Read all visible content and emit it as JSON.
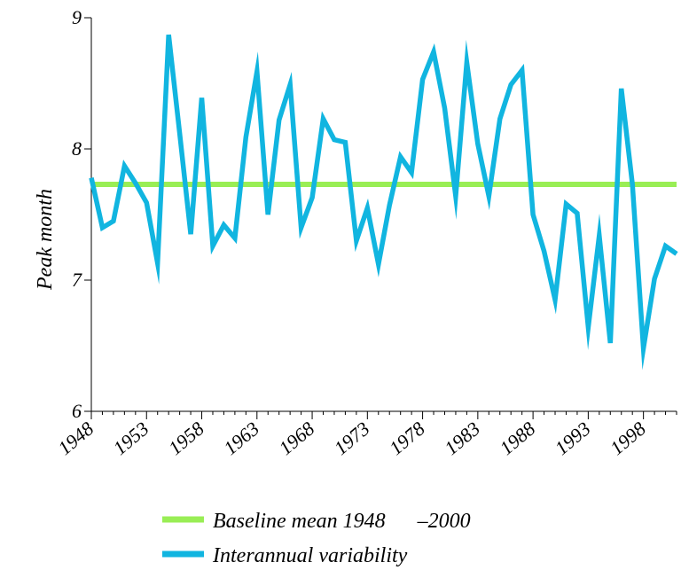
{
  "chart_data": {
    "type": "line",
    "title": "",
    "xlabel": "",
    "ylabel": "Peak month",
    "xlim": [
      1948,
      2001
    ],
    "ylim": [
      6,
      9
    ],
    "x_ticks": [
      "1948",
      "1953",
      "1958",
      "1963",
      "1968",
      "1973",
      "1978",
      "1983",
      "1988",
      "1993",
      "1998"
    ],
    "y_ticks": [
      "6",
      "7",
      "8",
      "9"
    ],
    "grid": false,
    "legend_position": "bottom",
    "series": [
      {
        "name": "Baseline mean 1948      –2000",
        "color": "#99ee55",
        "x": [
          1948,
          2001
        ],
        "values": [
          7.73,
          7.73
        ]
      },
      {
        "name": "Interannual variability",
        "color": "#11b5e0",
        "x": [
          1948,
          1949,
          1950,
          1951,
          1952,
          1953,
          1954,
          1955,
          1956,
          1957,
          1958,
          1959,
          1960,
          1961,
          1962,
          1963,
          1964,
          1965,
          1966,
          1967,
          1968,
          1969,
          1970,
          1971,
          1972,
          1973,
          1974,
          1975,
          1976,
          1977,
          1978,
          1979,
          1980,
          1981,
          1982,
          1983,
          1984,
          1985,
          1986,
          1987,
          1988,
          1989,
          1990,
          1991,
          1992,
          1993,
          1994,
          1995,
          1996,
          1997,
          1998,
          1999,
          2000,
          2001
        ],
        "values": [
          7.78,
          7.4,
          7.45,
          7.87,
          7.74,
          7.59,
          7.13,
          8.87,
          8.12,
          7.35,
          8.39,
          7.26,
          7.42,
          7.32,
          8.09,
          8.59,
          7.5,
          8.22,
          8.49,
          7.4,
          7.63,
          8.23,
          8.07,
          8.05,
          7.3,
          7.55,
          7.12,
          7.57,
          7.94,
          7.82,
          8.53,
          8.74,
          8.31,
          7.64,
          8.66,
          8.04,
          7.64,
          8.23,
          8.49,
          8.6,
          7.5,
          7.22,
          6.85,
          7.58,
          7.51,
          6.64,
          7.34,
          6.52,
          8.46,
          7.73,
          6.48,
          7.01,
          7.26,
          7.2
        ]
      }
    ]
  }
}
